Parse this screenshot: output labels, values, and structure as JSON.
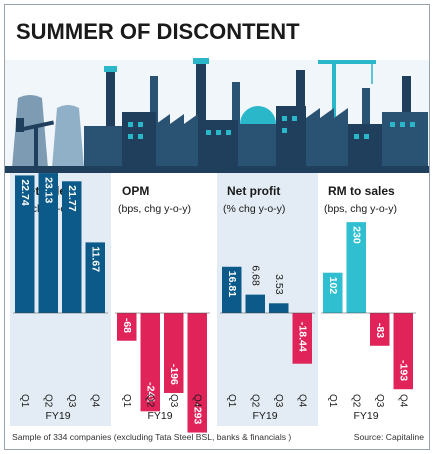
{
  "headline": "SUMMER OF DISCONTENT",
  "illustration_icon": "industrial-skyline-illustration",
  "colors": {
    "dark_blue": "#0c5a8a",
    "cyan": "#2fbfd0",
    "crimson": "#e0245a",
    "panel_bg": "#e3ecf4",
    "skyline": "#1f3f5c",
    "skyline_accent": "#2ab7c9",
    "text": "#1a1a1a"
  },
  "footnote": "Sample of 334 companies (excluding Tata Steel BSL, banks & financials )",
  "source": "Source: Capitaline",
  "chart_data": [
    {
      "type": "bar",
      "title": "Net sales",
      "subtitle": "(% chg y-o-y)",
      "categories": [
        "Q1",
        "Q2",
        "Q3",
        "Q4"
      ],
      "values": [
        22.74,
        23.13,
        21.77,
        11.67
      ],
      "labels": [
        "22.74",
        "23.13",
        "21.77",
        "11.67"
      ],
      "xlabel": "FY19",
      "colors": [
        "#0c5a8a",
        "#0c5a8a",
        "#0c5a8a",
        "#0c5a8a"
      ],
      "shaded": true
    },
    {
      "type": "bar",
      "title": "OPM",
      "subtitle": "(bps, chg y-o-y)",
      "categories": [
        "Q1",
        "Q2",
        "Q3",
        "Q4"
      ],
      "values": [
        -68,
        -241,
        -196,
        -293
      ],
      "labels": [
        "-68",
        "-241",
        "-196",
        "-293"
      ],
      "xlabel": "FY19",
      "colors": [
        "#e0245a",
        "#e0245a",
        "#e0245a",
        "#e0245a"
      ],
      "shaded": false
    },
    {
      "type": "bar",
      "title": "Net profit",
      "subtitle": "(% chg y-o-y)",
      "categories": [
        "Q1",
        "Q2",
        "Q3",
        "Q4"
      ],
      "values": [
        16.81,
        6.68,
        3.53,
        -18.44
      ],
      "labels": [
        "16.81",
        "6.68",
        "3.53",
        "-18.44"
      ],
      "xlabel": "FY19",
      "colors": [
        "#0c5a8a",
        "#0c5a8a",
        "#0c5a8a",
        "#e0245a"
      ],
      "shaded": true
    },
    {
      "type": "bar",
      "title": "RM to sales",
      "subtitle": "(bps, chg y-o-y)",
      "categories": [
        "Q1",
        "Q2",
        "Q3",
        "Q4"
      ],
      "values": [
        102,
        230,
        -83,
        -193
      ],
      "labels": [
        "102",
        "230",
        "-83",
        "-193"
      ],
      "xlabel": "FY19",
      "colors": [
        "#2fbfd0",
        "#2fbfd0",
        "#e0245a",
        "#e0245a"
      ],
      "shaded": false
    }
  ]
}
